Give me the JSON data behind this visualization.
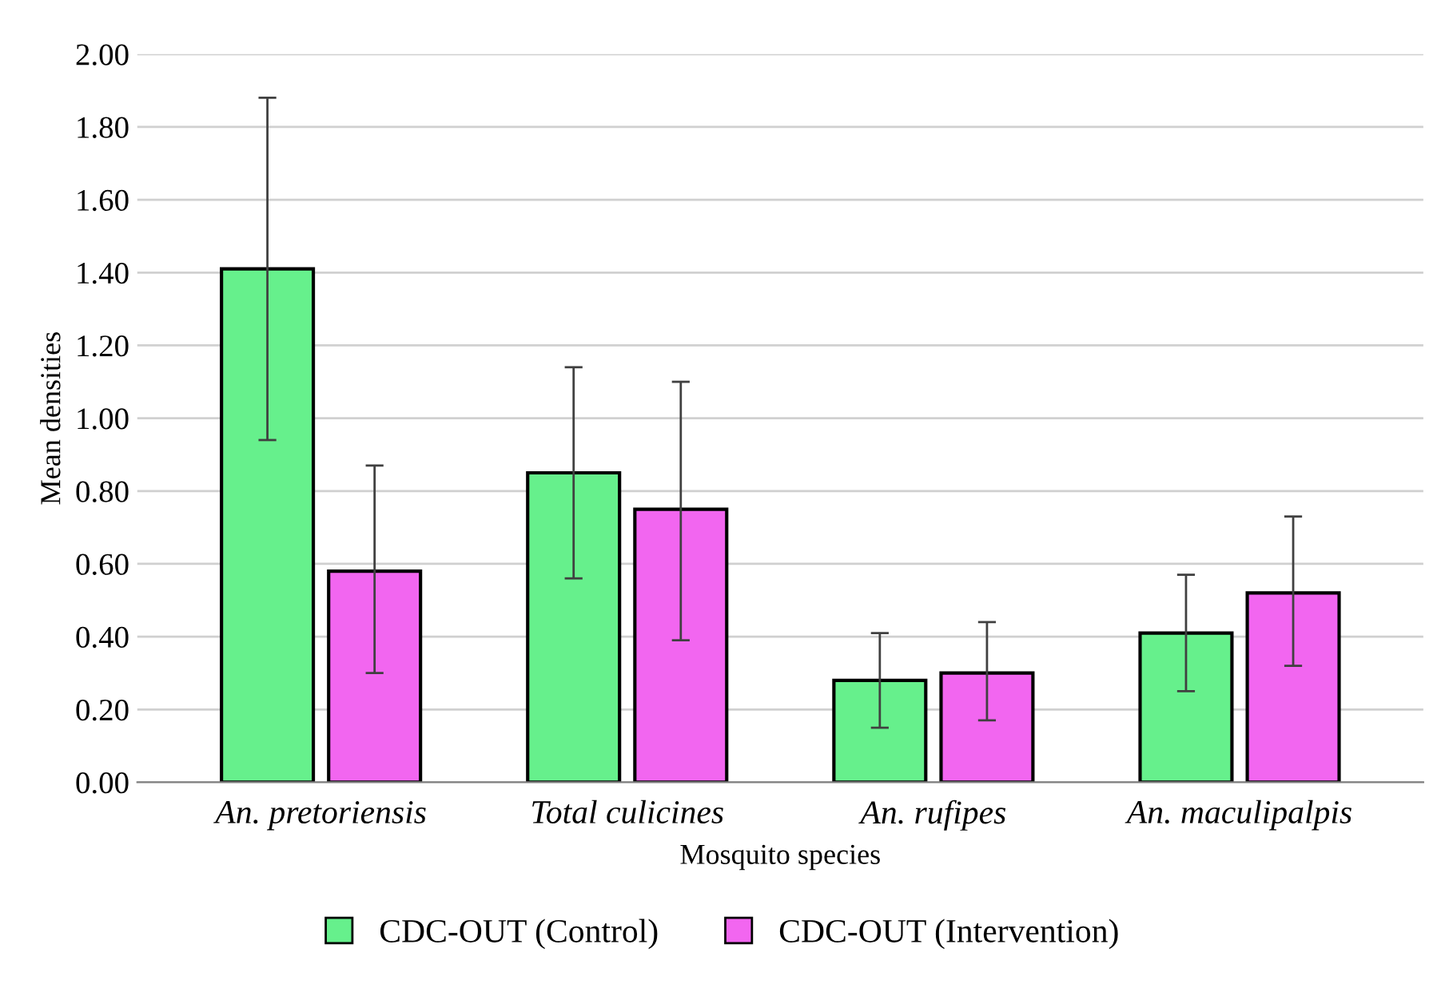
{
  "chart_data": {
    "type": "bar",
    "xlabel": "Mosquito species",
    "ylabel": "Mean densities",
    "categories": [
      "An. pretoriensis",
      "Total culicines",
      "An. rufipes",
      "An. maculipalpis"
    ],
    "series": [
      {
        "name": "CDC-OUT (Control)",
        "color": "#66f08c",
        "values": [
          1.41,
          0.85,
          0.28,
          0.41
        ],
        "errors": [
          [
            0.94,
            1.88
          ],
          [
            0.56,
            1.14
          ],
          [
            0.15,
            0.41
          ],
          [
            0.25,
            0.57
          ]
        ]
      },
      {
        "name": "CDC-OUT (Intervention)",
        "color": "#f266f0",
        "values": [
          0.58,
          0.75,
          0.3,
          0.52
        ],
        "errors": [
          [
            0.3,
            0.87
          ],
          [
            0.39,
            1.1
          ],
          [
            0.17,
            0.44
          ],
          [
            0.32,
            0.73
          ]
        ]
      }
    ],
    "ylim": [
      0,
      2.0
    ],
    "yticks": [
      {
        "value": 0,
        "label": "0.00"
      },
      {
        "value": 0.2,
        "label": "0.20"
      },
      {
        "value": 0.4,
        "label": "0.40"
      },
      {
        "value": 0.6,
        "label": "0.60"
      },
      {
        "value": 0.8,
        "label": "0.80"
      },
      {
        "value": 1.0,
        "label": "1.00"
      },
      {
        "value": 1.2,
        "label": "1.20"
      },
      {
        "value": 1.4,
        "label": "1.40"
      },
      {
        "value": 1.6,
        "label": "1.60"
      },
      {
        "value": 1.8,
        "label": "1.80"
      },
      {
        "value": 2.0,
        "label": "2.00"
      }
    ],
    "grid": "y",
    "legend": "bottom"
  }
}
